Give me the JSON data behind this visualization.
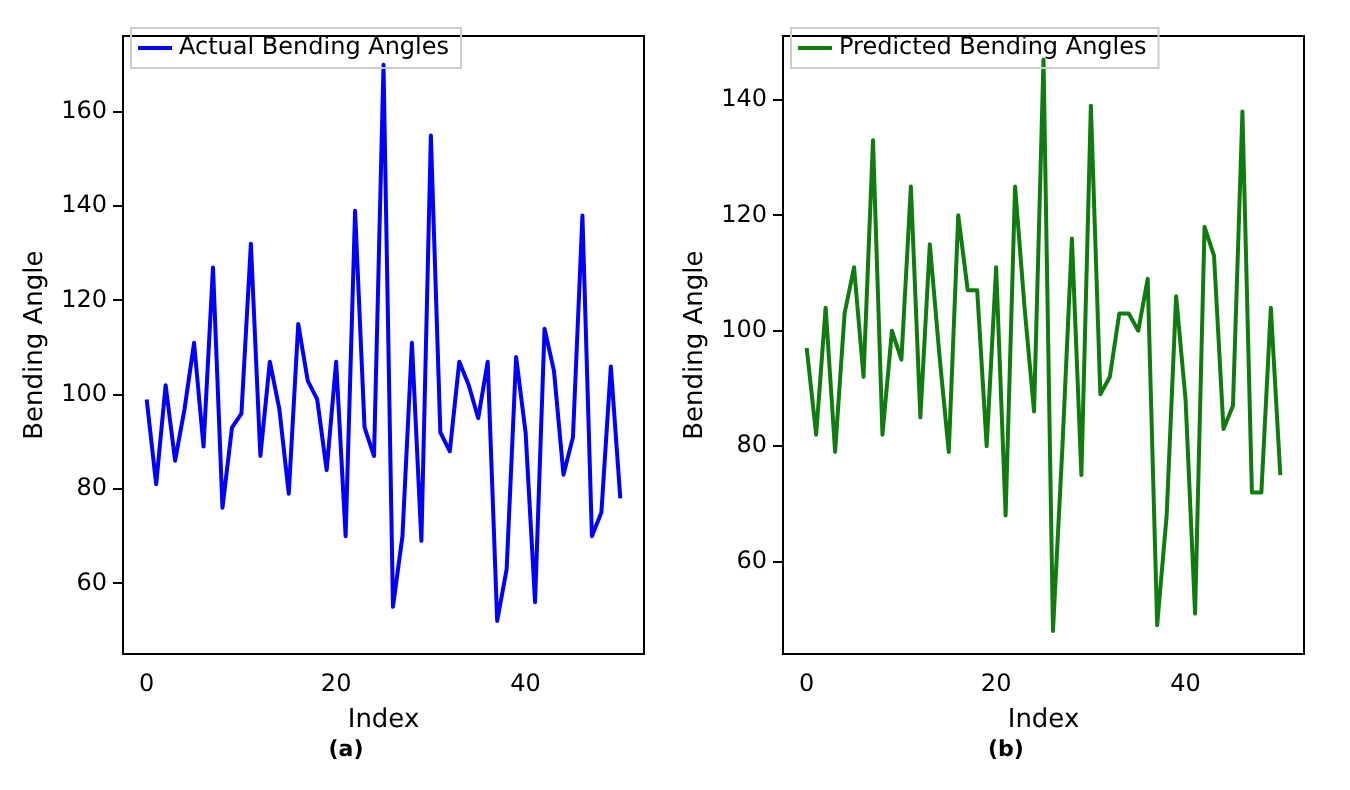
{
  "chart_data": [
    {
      "type": "line",
      "xlabel": "Index",
      "ylabel": "Bending Angle",
      "annotations": [
        "(a)"
      ],
      "x": [
        0,
        1,
        2,
        3,
        4,
        5,
        6,
        7,
        8,
        9,
        10,
        11,
        12,
        13,
        14,
        15,
        16,
        17,
        18,
        19,
        20,
        21,
        22,
        23,
        24,
        25,
        26,
        27,
        28,
        29,
        30,
        31,
        32,
        33,
        34,
        35,
        36,
        37,
        38,
        39,
        40,
        41,
        42,
        43,
        44,
        45,
        46,
        47,
        48,
        49,
        50
      ],
      "series": [
        {
          "name": "Actual Bending Angles",
          "color": "#0000ff",
          "values": [
            99,
            81,
            102,
            86,
            97,
            111,
            89,
            127,
            76,
            93,
            96,
            132,
            87,
            107,
            97,
            79,
            115,
            103,
            99,
            84,
            107,
            70,
            139,
            93,
            87,
            170,
            55,
            70,
            111,
            69,
            155,
            92,
            88,
            107,
            102,
            95,
            107,
            52,
            63,
            108,
            92,
            56,
            114,
            105,
            83,
            91,
            138,
            70,
            75,
            106,
            78
          ]
        }
      ],
      "xlim": [
        -2.5,
        52.5
      ],
      "xticks": [
        0,
        20,
        40
      ],
      "ylim": [
        45,
        176
      ],
      "yticks": [
        60,
        80,
        100,
        120,
        140,
        160
      ],
      "legend": "top left",
      "grid": false,
      "marker": "none",
      "line_style": "solid"
    },
    {
      "type": "line",
      "xlabel": "Index",
      "ylabel": "Bending Angle",
      "annotations": [
        "(b)"
      ],
      "x": [
        0,
        1,
        2,
        3,
        4,
        5,
        6,
        7,
        8,
        9,
        10,
        11,
        12,
        13,
        14,
        15,
        16,
        17,
        18,
        19,
        20,
        21,
        22,
        23,
        24,
        25,
        26,
        27,
        28,
        29,
        30,
        31,
        32,
        33,
        34,
        35,
        36,
        37,
        38,
        39,
        40,
        41,
        42,
        43,
        44,
        45,
        46,
        47,
        48,
        49,
        50
      ],
      "series": [
        {
          "name": "Predicted Bending Angles",
          "color": "#107c10",
          "values": [
            97,
            82,
            104,
            79,
            103,
            111,
            92,
            133,
            82,
            100,
            95,
            125,
            85,
            115,
            96,
            79,
            120,
            107,
            107,
            80,
            111,
            68,
            125,
            104,
            86,
            147,
            48,
            80,
            116,
            75,
            139,
            89,
            92,
            103,
            103,
            100,
            109,
            49,
            68,
            106,
            88,
            51,
            118,
            113,
            83,
            87,
            138,
            72,
            72,
            104,
            75
          ]
        }
      ],
      "xlim": [
        -2.5,
        52.5
      ],
      "xticks": [
        0,
        20,
        40
      ],
      "ylim": [
        44,
        151
      ],
      "yticks": [
        60,
        80,
        100,
        120,
        140
      ],
      "legend": "top left",
      "grid": false,
      "marker": "none",
      "line_style": "solid"
    }
  ]
}
